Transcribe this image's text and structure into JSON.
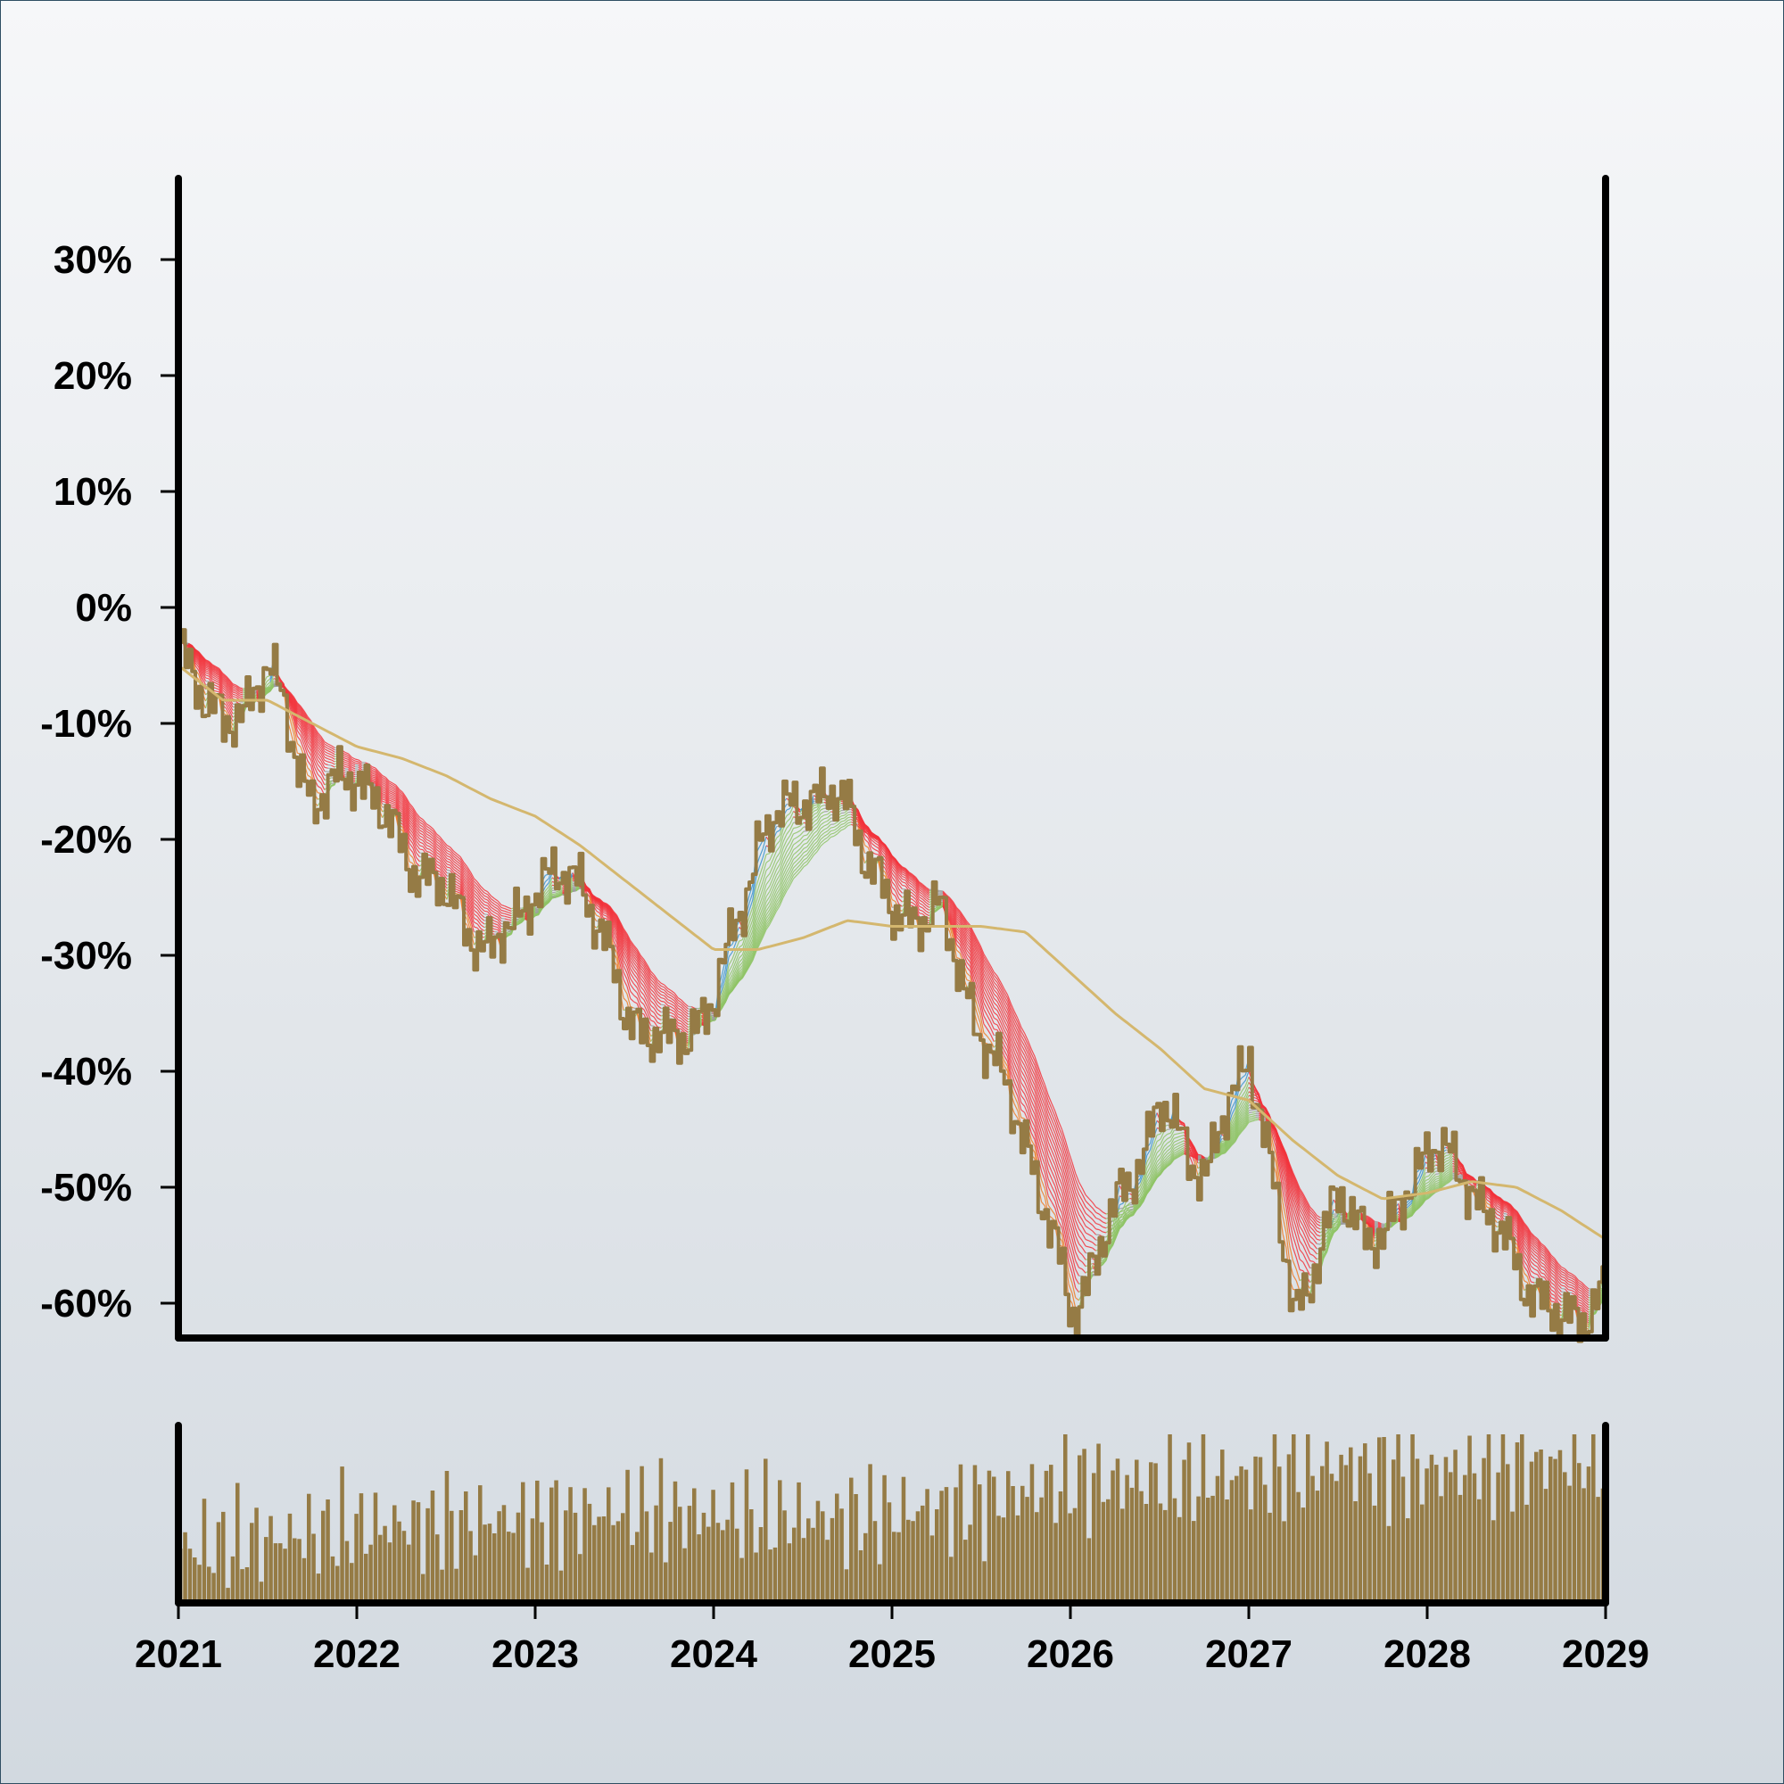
{
  "colors": {
    "price": "#957b45",
    "ma_long": "#d4b76e",
    "ribbon_down": "#f2333b",
    "ribbon_up": "#8fc466",
    "ribbon_neutral": "#9b9b9b",
    "ribbon_up_fast": "#3a93cc",
    "ribbon_down_fast": "#ef7b24",
    "volume": "#957b45",
    "axis": "#000000"
  },
  "chart_data": [
    {
      "type": "line",
      "panel": "price",
      "title": "",
      "xlabel": "",
      "ylabel": "",
      "y_tick_labels": [
        "30%",
        "20%",
        "10%",
        "0%",
        "-10%",
        "-20%",
        "-30%",
        "-40%",
        "-50%",
        "-60%"
      ],
      "y_tick_values": [
        30,
        20,
        10,
        0,
        -10,
        -20,
        -30,
        -40,
        -50,
        -60
      ],
      "ylim": [
        -63,
        37
      ],
      "xlim": [
        2021.0,
        2029.0
      ],
      "grid": false,
      "legend": "none",
      "series": [
        {
          "role": "price",
          "x": [
            2021.0,
            2021.25,
            2021.5,
            2021.75,
            2022.0,
            2022.25,
            2022.5,
            2022.75,
            2023.0,
            2023.25,
            2023.5,
            2023.75,
            2024.0,
            2024.25,
            2024.5,
            2024.75,
            2025.0,
            2025.25,
            2025.5,
            2025.75,
            2026.0,
            2026.25,
            2026.5,
            2026.75,
            2027.0,
            2027.25,
            2027.5,
            2027.75,
            2028.0,
            2028.25,
            2028.5,
            2028.75,
            2029.0
          ],
          "values": [
            -3,
            -11,
            -5,
            -17,
            -14,
            -21,
            -25,
            -30,
            -24,
            -23,
            -35,
            -38,
            -34,
            -20,
            -16,
            -17,
            -27,
            -26,
            -37,
            -46,
            -61,
            -52,
            -43,
            -49,
            -38,
            -61,
            -51,
            -55,
            -46,
            -50,
            -57,
            -62,
            -59
          ]
        },
        {
          "role": "long-moving-average",
          "x": [
            2021.0,
            2021.25,
            2021.5,
            2021.75,
            2022.0,
            2022.25,
            2022.5,
            2022.75,
            2023.0,
            2023.25,
            2023.5,
            2023.75,
            2024.0,
            2024.25,
            2024.5,
            2024.75,
            2025.0,
            2025.25,
            2025.5,
            2025.75,
            2026.0,
            2026.25,
            2026.5,
            2026.75,
            2027.0,
            2027.25,
            2027.5,
            2027.75,
            2028.0,
            2028.25,
            2028.5,
            2028.75,
            2029.0
          ],
          "values": [
            -5,
            -8,
            -8,
            -10,
            -12,
            -13,
            -14.5,
            -16.5,
            -18,
            -20.5,
            -23.5,
            -26.5,
            -29.5,
            -29.5,
            -28.5,
            -27,
            -27.5,
            -27.5,
            -27.5,
            -28,
            -31.5,
            -35,
            -38,
            -41.5,
            -42.5,
            -46,
            -49,
            -51,
            -50.5,
            -49.5,
            -50,
            -52,
            -54.5
          ]
        }
      ]
    },
    {
      "type": "bar",
      "panel": "volume",
      "title": "",
      "xlim": [
        2021.0,
        2029.0
      ],
      "x_tick_labels": [
        "2021",
        "2022",
        "2023",
        "2024",
        "2025",
        "2026",
        "2027",
        "2028",
        "2029"
      ],
      "x_tick_values": [
        2021,
        2022,
        2023,
        2024,
        2025,
        2026,
        2027,
        2028,
        2029
      ],
      "ylim": [
        0,
        1
      ],
      "x": [
        2021.0,
        2021.5,
        2022.0,
        2022.5,
        2023.0,
        2023.5,
        2024.0,
        2024.5,
        2025.0,
        2025.5,
        2026.0,
        2026.5,
        2027.0,
        2027.5,
        2028.0,
        2028.5,
        2029.0
      ],
      "values": [
        0.32,
        0.38,
        0.45,
        0.48,
        0.5,
        0.55,
        0.52,
        0.5,
        0.53,
        0.6,
        0.72,
        0.72,
        0.75,
        0.82,
        0.78,
        0.82,
        0.85
      ]
    }
  ]
}
